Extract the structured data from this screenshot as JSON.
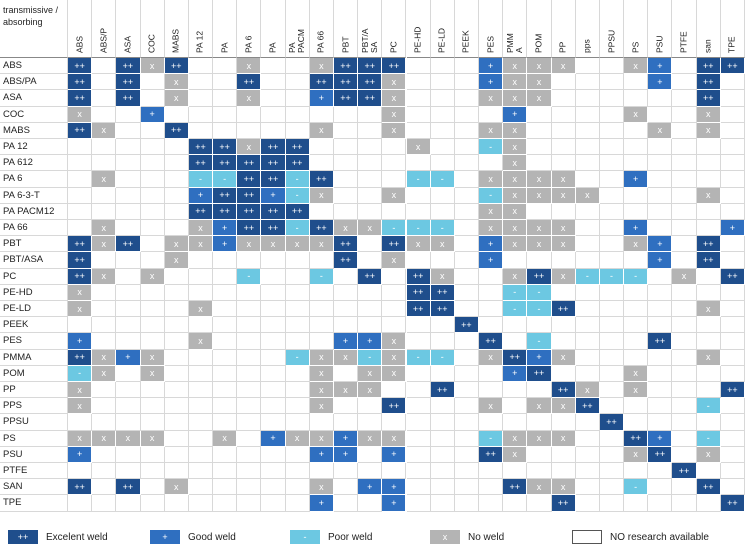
{
  "table": {
    "corner": "transmissive / absorbing",
    "columns": [
      "ABS",
      "ABS/P",
      "ASA",
      "COC",
      "MABS",
      "PA 12",
      "PA",
      "PA 6",
      "PA",
      "PA\nPACM",
      "PA 66",
      "PBT",
      "PBT/A\nSA",
      "PC",
      "PE-HD",
      "PE-LD",
      "PEEK",
      "PES",
      "PMM\nA",
      "POM",
      "PP",
      "pps",
      "PPSU",
      "PS",
      "PSU",
      "PTFE",
      "san",
      "TPE"
    ],
    "rows": [
      {
        "label": "ABS",
        "cells": [
          "++",
          null,
          "++",
          "x",
          "++",
          null,
          null,
          "x",
          null,
          null,
          "x",
          "++",
          "++",
          "++",
          null,
          null,
          null,
          "+",
          "x",
          "x",
          "x",
          null,
          null,
          "x",
          "+",
          null,
          "++",
          "++"
        ]
      },
      {
        "label": "ABS/PA",
        "cells": [
          "++",
          null,
          "++",
          null,
          "x",
          null,
          null,
          "++",
          null,
          null,
          "++",
          "++",
          "++",
          "x",
          null,
          null,
          null,
          "+",
          "x",
          "x",
          null,
          null,
          null,
          null,
          "+",
          null,
          "++",
          null
        ]
      },
      {
        "label": "ASA",
        "cells": [
          "++",
          null,
          "++",
          null,
          "x",
          null,
          null,
          "x",
          null,
          null,
          "+",
          "++",
          "++",
          "x",
          null,
          null,
          null,
          "x",
          "x",
          "x",
          null,
          null,
          null,
          null,
          null,
          null,
          "++",
          null
        ]
      },
      {
        "label": "COC",
        "cells": [
          "x",
          null,
          null,
          "+",
          null,
          null,
          null,
          null,
          null,
          null,
          null,
          null,
          null,
          "x",
          null,
          null,
          null,
          null,
          "+",
          null,
          null,
          null,
          null,
          "x",
          null,
          null,
          "x",
          null
        ]
      },
      {
        "label": "MABS",
        "cells": [
          "++",
          "x",
          null,
          null,
          "++",
          null,
          null,
          null,
          null,
          null,
          "x",
          null,
          null,
          "x",
          null,
          null,
          null,
          "x",
          "x",
          null,
          null,
          null,
          null,
          null,
          "x",
          null,
          "x",
          null
        ]
      },
      {
        "label": "PA 12",
        "cells": [
          null,
          null,
          null,
          null,
          null,
          "++",
          "++",
          "x",
          "++",
          "++",
          null,
          null,
          null,
          null,
          "x",
          null,
          null,
          "-",
          "x",
          null,
          null,
          null,
          null,
          null,
          null,
          null,
          null,
          null
        ]
      },
      {
        "label": "PA 612",
        "cells": [
          null,
          null,
          null,
          null,
          null,
          "++",
          "++",
          "++",
          "++",
          "++",
          null,
          null,
          null,
          null,
          null,
          null,
          null,
          null,
          "x",
          null,
          null,
          null,
          null,
          null,
          null,
          null,
          null,
          null
        ]
      },
      {
        "label": "PA 6",
        "cells": [
          null,
          "x",
          null,
          null,
          null,
          "-",
          "-",
          "++",
          "++",
          "-",
          "++",
          null,
          null,
          null,
          "-",
          "-",
          null,
          "x",
          "x",
          "x",
          "x",
          null,
          null,
          "+",
          null,
          null,
          null,
          null
        ]
      },
      {
        "label": "PA 6-3-T",
        "cells": [
          null,
          null,
          null,
          null,
          null,
          "+",
          "++",
          "++",
          "+",
          "-",
          "x",
          null,
          null,
          "x",
          null,
          null,
          null,
          "-",
          "x",
          "x",
          "x",
          "x",
          null,
          null,
          null,
          null,
          "x",
          null
        ]
      },
      {
        "label": "PA PACM12",
        "cells": [
          null,
          null,
          null,
          null,
          null,
          "++",
          "++",
          "++",
          "++",
          "++",
          null,
          null,
          null,
          null,
          null,
          null,
          null,
          "x",
          "x",
          null,
          null,
          null,
          null,
          null,
          null,
          null,
          null,
          null
        ]
      },
      {
        "label": "PA 66",
        "cells": [
          null,
          "x",
          null,
          null,
          null,
          "x",
          "+",
          "++",
          "++",
          "-",
          "++",
          "x",
          "x",
          "-",
          "-",
          "-",
          null,
          "x",
          "x",
          "x",
          "x",
          null,
          null,
          "+",
          null,
          null,
          null,
          "+"
        ]
      },
      {
        "label": "PBT",
        "cells": [
          "++",
          "x",
          "++",
          null,
          "x",
          "x",
          "+",
          "x",
          "x",
          "x",
          "x",
          "++",
          null,
          "++",
          "x",
          "x",
          null,
          "+",
          "x",
          "x",
          "x",
          null,
          null,
          "x",
          "+",
          null,
          "++",
          null
        ]
      },
      {
        "label": "PBT/ASA",
        "cells": [
          "++",
          null,
          null,
          null,
          "x",
          null,
          null,
          null,
          null,
          null,
          null,
          "++",
          null,
          "x",
          null,
          null,
          null,
          "+",
          null,
          null,
          null,
          null,
          null,
          null,
          "+",
          null,
          "++",
          null
        ]
      },
      {
        "label": "PC",
        "cells": [
          "++",
          "x",
          null,
          "x",
          null,
          null,
          null,
          "-",
          null,
          null,
          "-",
          null,
          "++",
          null,
          "++",
          "x",
          null,
          null,
          "x",
          "++",
          "x",
          "-",
          "-",
          "-",
          null,
          "x",
          null,
          "++"
        ]
      },
      {
        "label": "PE-HD",
        "cells": [
          "x",
          null,
          null,
          null,
          null,
          null,
          null,
          null,
          null,
          null,
          null,
          null,
          null,
          null,
          "++",
          "++",
          null,
          null,
          "-",
          "-",
          null,
          null,
          null,
          null,
          null,
          null,
          null,
          null
        ]
      },
      {
        "label": "PE-LD",
        "cells": [
          "x",
          null,
          null,
          null,
          null,
          "x",
          null,
          null,
          null,
          null,
          null,
          null,
          null,
          null,
          "++",
          "++",
          null,
          null,
          "-",
          "-",
          "++",
          null,
          null,
          null,
          null,
          null,
          "x",
          null
        ]
      },
      {
        "label": "PEEK",
        "cells": [
          null,
          null,
          null,
          null,
          null,
          null,
          null,
          null,
          null,
          null,
          null,
          null,
          null,
          null,
          null,
          null,
          "++",
          null,
          null,
          null,
          null,
          null,
          null,
          null,
          null,
          null,
          null,
          null
        ]
      },
      {
        "label": "PES",
        "cells": [
          "+",
          null,
          null,
          null,
          null,
          "x",
          null,
          null,
          null,
          null,
          null,
          "+",
          "+",
          "x",
          null,
          null,
          null,
          "++",
          null,
          "-",
          null,
          null,
          null,
          null,
          "++",
          null,
          null,
          null
        ]
      },
      {
        "label": "PMMA",
        "cells": [
          "++",
          "x",
          "+",
          "x",
          null,
          null,
          null,
          null,
          null,
          "-",
          "x",
          "x",
          "-",
          "x",
          "-",
          "-",
          null,
          "x",
          "++",
          "+",
          "x",
          null,
          null,
          null,
          null,
          null,
          "x",
          null
        ]
      },
      {
        "label": "POM",
        "cells": [
          "-",
          "x",
          null,
          "x",
          null,
          null,
          null,
          null,
          null,
          null,
          "x",
          null,
          "x",
          "x",
          null,
          null,
          null,
          null,
          "+",
          "++",
          null,
          null,
          null,
          "x",
          null,
          null,
          null,
          null
        ]
      },
      {
        "label": "PP",
        "cells": [
          "x",
          null,
          null,
          null,
          null,
          null,
          null,
          null,
          null,
          null,
          "x",
          "x",
          "x",
          null,
          null,
          "++",
          null,
          null,
          null,
          null,
          "++",
          "x",
          null,
          "x",
          null,
          null,
          null,
          "++"
        ]
      },
      {
        "label": "PPS",
        "cells": [
          "x",
          null,
          null,
          null,
          null,
          null,
          null,
          null,
          null,
          null,
          "x",
          null,
          null,
          "++",
          null,
          null,
          null,
          "x",
          null,
          "x",
          "x",
          "++",
          null,
          null,
          null,
          null,
          "-",
          null
        ]
      },
      {
        "label": "PPSU",
        "cells": [
          null,
          null,
          null,
          null,
          null,
          null,
          null,
          null,
          null,
          null,
          null,
          null,
          null,
          null,
          null,
          null,
          null,
          null,
          null,
          null,
          null,
          null,
          "++",
          null,
          null,
          null,
          null,
          null
        ]
      },
      {
        "label": "PS",
        "cells": [
          "x",
          "x",
          "x",
          "x",
          null,
          null,
          "x",
          null,
          "+",
          "x",
          "x",
          "+",
          "x",
          "x",
          null,
          null,
          null,
          "-",
          "x",
          "x",
          "x",
          null,
          null,
          "++",
          "+",
          null,
          "-",
          null
        ]
      },
      {
        "label": "PSU",
        "cells": [
          "+",
          null,
          null,
          null,
          null,
          null,
          null,
          null,
          null,
          null,
          "+",
          "+",
          null,
          "+",
          null,
          null,
          null,
          "++",
          "x",
          null,
          null,
          null,
          null,
          "x",
          "++",
          null,
          "x",
          null
        ]
      },
      {
        "label": "PTFE",
        "cells": [
          null,
          null,
          null,
          null,
          null,
          null,
          null,
          null,
          null,
          null,
          null,
          null,
          null,
          null,
          null,
          null,
          null,
          null,
          null,
          null,
          null,
          null,
          null,
          null,
          null,
          "++",
          null,
          null
        ]
      },
      {
        "label": "SAN",
        "cells": [
          "++",
          null,
          "++",
          null,
          "x",
          null,
          null,
          null,
          null,
          null,
          "x",
          null,
          "+",
          "+",
          null,
          null,
          null,
          null,
          "++",
          "x",
          "x",
          null,
          null,
          "-",
          null,
          null,
          "++",
          null
        ]
      },
      {
        "label": "TPE",
        "cells": [
          null,
          null,
          null,
          null,
          null,
          null,
          null,
          null,
          null,
          null,
          "+",
          null,
          null,
          "+",
          null,
          null,
          null,
          null,
          null,
          null,
          "++",
          null,
          null,
          null,
          null,
          null,
          null,
          "++"
        ]
      }
    ]
  },
  "legend": [
    {
      "symbol": "++",
      "label": "Excelent weld",
      "color": "#1f4e8c"
    },
    {
      "symbol": "+",
      "label": "Good weld",
      "color": "#2f6fc0"
    },
    {
      "symbol": "-",
      "label": "Poor weld",
      "color": "#6cc8e2"
    },
    {
      "symbol": "x",
      "label": "No weld",
      "color": "#b4b4b4"
    },
    {
      "symbol": null,
      "label": "NO research available",
      "color": "#ffffff"
    }
  ]
}
